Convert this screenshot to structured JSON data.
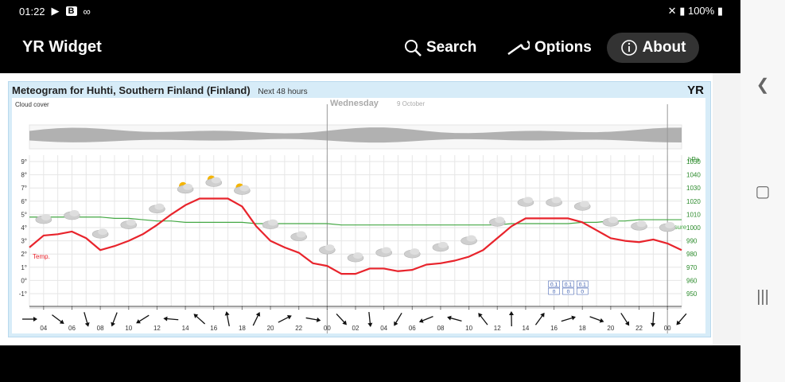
{
  "status_bar": {
    "time": "01:22",
    "right": "100%",
    "badge": "B"
  },
  "app_bar": {
    "title": "YR Widget",
    "search_label": "Search",
    "options_label": "Options",
    "about_label": "About"
  },
  "meteogram": {
    "title": "Meteogram for Huhti, Southern Finland (Finland)",
    "subtitle": "Next 48 hours",
    "logo": "YR",
    "cloud_label": "Cloud cover",
    "day_label": "Wednesday",
    "day_date": "9 October"
  },
  "chart_data": {
    "type": "line",
    "x": [
      "03",
      "04",
      "05",
      "06",
      "07",
      "08",
      "09",
      "10",
      "11",
      "12",
      "13",
      "14",
      "15",
      "16",
      "17",
      "18",
      "19",
      "20",
      "21",
      "22",
      "23",
      "00",
      "01",
      "02",
      "03",
      "04",
      "05",
      "06",
      "07",
      "08",
      "09",
      "10",
      "11",
      "12",
      "13",
      "14",
      "15",
      "16",
      "17",
      "18",
      "19",
      "20",
      "21",
      "22",
      "23",
      "00",
      "01"
    ],
    "x_ticks": [
      "04",
      "06",
      "08",
      "10",
      "12",
      "14",
      "16",
      "18",
      "20",
      "22",
      "00",
      "02",
      "04",
      "06",
      "08",
      "10",
      "12",
      "14",
      "16",
      "18",
      "20",
      "22",
      "00"
    ],
    "y_left_ticks": [
      "9°",
      "8°",
      "7°",
      "6°",
      "5°",
      "4°",
      "3°",
      "2°",
      "1°",
      "0°",
      "-1°"
    ],
    "y_left_range": [
      -1,
      9
    ],
    "y_right_ticks": [
      "1050",
      "1040",
      "1030",
      "1020",
      "1010",
      "1000",
      "990",
      "980",
      "970",
      "960",
      "950"
    ],
    "y_right_range": [
      950,
      1050
    ],
    "y_right_unit": "hPa",
    "series": [
      {
        "name": "Temp.",
        "color": "#e8242c",
        "values": [
          2.5,
          3.4,
          3.5,
          3.7,
          3.2,
          2.3,
          2.6,
          3.0,
          3.5,
          4.2,
          5.0,
          5.7,
          6.2,
          6.2,
          6.2,
          5.6,
          4.1,
          3.0,
          2.5,
          2.1,
          1.3,
          1.1,
          0.5,
          0.5,
          0.9,
          0.9,
          0.7,
          0.8,
          1.2,
          1.3,
          1.5,
          1.8,
          2.3,
          3.2,
          4.1,
          4.7,
          4.7,
          4.7,
          4.7,
          4.4,
          3.8,
          3.2,
          3.0,
          2.9,
          3.1,
          2.8,
          2.3
        ]
      },
      {
        "name": "Pressure",
        "color": "#44a844",
        "values": [
          1008,
          1008,
          1008,
          1008,
          1008,
          1008,
          1007,
          1007,
          1006,
          1005,
          1005,
          1004,
          1004,
          1004,
          1004,
          1004,
          1003,
          1003,
          1003,
          1003,
          1003,
          1003,
          1002,
          1002,
          1002,
          1002,
          1002,
          1002,
          1002,
          1002,
          1002,
          1002,
          1002,
          1002,
          1003,
          1003,
          1003,
          1003,
          1003,
          1004,
          1004,
          1005,
          1005,
          1006,
          1006,
          1006,
          1006
        ]
      }
    ],
    "precip_labels": [
      "0.1",
      "0.1",
      "0.1",
      "0",
      "0",
      "0"
    ],
    "grid": true,
    "legend": "inline"
  },
  "icons": {
    "search": "search-icon",
    "options": "wrench-icon",
    "about": "info-icon"
  }
}
